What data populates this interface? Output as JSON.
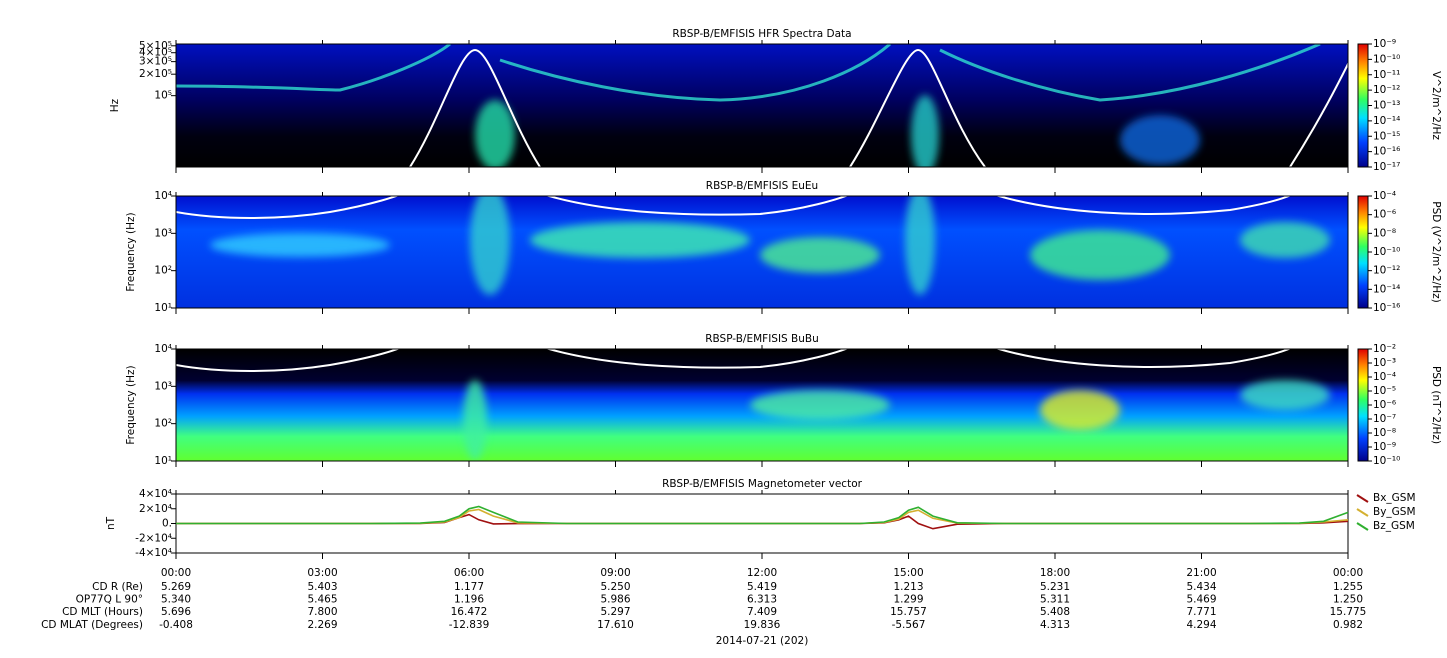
{
  "chart_data": [
    {
      "type": "spectrogram",
      "title": "RBSP-B/EMFISIS  HFR Spectra Data",
      "y_label": "Hz",
      "log_y": true,
      "ylim": [
        10000,
        530000
      ],
      "yticks": [
        {
          "value": 100000,
          "label": "10⁵"
        },
        {
          "value": 200000,
          "label": "2×10⁵"
        },
        {
          "value": 300000,
          "label": "3×10⁵"
        },
        {
          "value": 400000,
          "label": "4×10⁵"
        },
        {
          "value": 500000,
          "label": "5×10⁵"
        }
      ],
      "colorbar": {
        "label": "V^2/m^2/Hz",
        "lim": [
          1e-17,
          1e-09
        ],
        "ticks": [
          {
            "value": 1e-09,
            "label": "10⁻⁹"
          },
          {
            "value": 1e-10,
            "label": "10⁻¹⁰"
          },
          {
            "value": 1e-11,
            "label": "10⁻¹¹"
          },
          {
            "value": 1e-12,
            "label": "10⁻¹²"
          },
          {
            "value": 1e-13,
            "label": "10⁻¹³"
          },
          {
            "value": 1e-14,
            "label": "10⁻¹⁴"
          },
          {
            "value": 1e-15,
            "label": "10⁻¹⁵"
          },
          {
            "value": 1e-16,
            "label": "10⁻¹⁶"
          },
          {
            "value": 1e-17,
            "label": "10⁻¹⁷"
          }
        ]
      }
    },
    {
      "type": "spectrogram",
      "title": "RBSP-B/EMFISIS  EuEu",
      "y_label": "Frequency (Hz)",
      "log_y": true,
      "ylim": [
        10,
        10000
      ],
      "yticks": [
        {
          "value": 10,
          "label": "10¹"
        },
        {
          "value": 100,
          "label": "10²"
        },
        {
          "value": 1000,
          "label": "10³"
        },
        {
          "value": 10000,
          "label": "10⁴"
        }
      ],
      "colorbar": {
        "label": "PSD (V^2/m^2/Hz)",
        "lim": [
          1e-16,
          0.0001
        ],
        "ticks": [
          {
            "value": 0.0001,
            "label": "10⁻⁴"
          },
          {
            "value": 1e-06,
            "label": "10⁻⁶"
          },
          {
            "value": 1e-08,
            "label": "10⁻⁸"
          },
          {
            "value": 1e-10,
            "label": "10⁻¹⁰"
          },
          {
            "value": 1e-12,
            "label": "10⁻¹²"
          },
          {
            "value": 1e-14,
            "label": "10⁻¹⁴"
          },
          {
            "value": 1e-16,
            "label": "10⁻¹⁶"
          }
        ]
      }
    },
    {
      "type": "spectrogram",
      "title": "RBSP-B/EMFISIS  BuBu",
      "y_label": "Frequency (Hz)",
      "log_y": true,
      "ylim": [
        10,
        10000
      ],
      "yticks": [
        {
          "value": 10,
          "label": "10¹"
        },
        {
          "value": 100,
          "label": "10²"
        },
        {
          "value": 1000,
          "label": "10³"
        },
        {
          "value": 10000,
          "label": "10⁴"
        }
      ],
      "colorbar": {
        "label": "PSD (nT^2/Hz)",
        "lim": [
          1e-10,
          0.01
        ],
        "ticks": [
          {
            "value": 0.01,
            "label": "10⁻²"
          },
          {
            "value": 0.001,
            "label": "10⁻³"
          },
          {
            "value": 0.0001,
            "label": "10⁻⁴"
          },
          {
            "value": 1e-05,
            "label": "10⁻⁵"
          },
          {
            "value": 1e-06,
            "label": "10⁻⁶"
          },
          {
            "value": 1e-07,
            "label": "10⁻⁷"
          },
          {
            "value": 1e-08,
            "label": "10⁻⁸"
          },
          {
            "value": 1e-09,
            "label": "10⁻⁹"
          },
          {
            "value": 1e-10,
            "label": "10⁻¹⁰"
          }
        ]
      }
    },
    {
      "type": "line",
      "title": "RBSP-B/EMFISIS  Magnetometer vector",
      "y_label": "nT",
      "ylim": [
        -40000,
        40000
      ],
      "yticks": [
        {
          "value": 40000,
          "label": "4×10⁴"
        },
        {
          "value": 20000,
          "label": "2×10⁴"
        },
        {
          "value": 0,
          "label": "0."
        },
        {
          "value": -20000,
          "label": "-2×10⁴"
        },
        {
          "value": -40000,
          "label": "-4×10⁴"
        }
      ],
      "xlim": [
        0,
        24
      ],
      "xticks": [
        {
          "value": 0,
          "label": "00:00"
        },
        {
          "value": 3,
          "label": "03:00"
        },
        {
          "value": 6,
          "label": "06:00"
        },
        {
          "value": 9,
          "label": "09:00"
        },
        {
          "value": 12,
          "label": "12:00"
        },
        {
          "value": 15,
          "label": "15:00"
        },
        {
          "value": 18,
          "label": "18:00"
        },
        {
          "value": 21,
          "label": "21:00"
        },
        {
          "value": 24,
          "label": "00:00"
        }
      ],
      "x": [
        0,
        4,
        5,
        5.5,
        5.8,
        6.0,
        6.2,
        6.5,
        7.0,
        8,
        13,
        14,
        14.5,
        14.8,
        15.0,
        15.2,
        15.5,
        16,
        17,
        22,
        23,
        23.5,
        24
      ],
      "series": [
        {
          "name": "Bx_GSM",
          "color": "#a01010",
          "values": [
            0,
            0,
            200,
            1500,
            8000,
            12000,
            5000,
            -500,
            -200,
            0,
            0,
            0,
            1000,
            5000,
            10000,
            0,
            -7000,
            -1000,
            0,
            0,
            100,
            1000,
            3000
          ]
        },
        {
          "name": "By_GSM",
          "color": "#d4b030",
          "values": [
            0,
            0,
            300,
            2000,
            8000,
            17000,
            19000,
            10000,
            1000,
            0,
            0,
            0,
            1500,
            6000,
            15000,
            18000,
            7000,
            500,
            0,
            0,
            300,
            2000,
            5000
          ]
        },
        {
          "name": "Bz_GSM",
          "color": "#30b030",
          "values": [
            0,
            0,
            500,
            3000,
            10000,
            20000,
            23000,
            15000,
            2000,
            0,
            0,
            0,
            2000,
            8000,
            18000,
            22000,
            10000,
            1000,
            0,
            0,
            500,
            3000,
            15000
          ]
        }
      ]
    }
  ],
  "ephemeris": [
    {
      "label": "CD R (Re)",
      "values": [
        "5.269",
        "5.403",
        "1.177",
        "5.250",
        "5.419",
        "1.213",
        "5.231",
        "5.434",
        "1.255"
      ]
    },
    {
      "label": "OP77Q L 90°",
      "values": [
        "5.340",
        "5.465",
        "1.196",
        "5.986",
        "6.313",
        "1.299",
        "5.311",
        "5.469",
        "1.250"
      ]
    },
    {
      "label": "CD MLT (Hours)",
      "values": [
        "5.696",
        "7.800",
        "16.472",
        "5.297",
        "7.409",
        "15.757",
        "5.408",
        "7.771",
        "15.775"
      ]
    },
    {
      "label": "CD MLAT (Degrees)",
      "values": [
        "-0.408",
        "2.269",
        "-12.839",
        "17.610",
        "19.836",
        "-5.567",
        "4.313",
        "4.294",
        "0.982"
      ]
    }
  ],
  "date": "2014-07-21 (202)"
}
